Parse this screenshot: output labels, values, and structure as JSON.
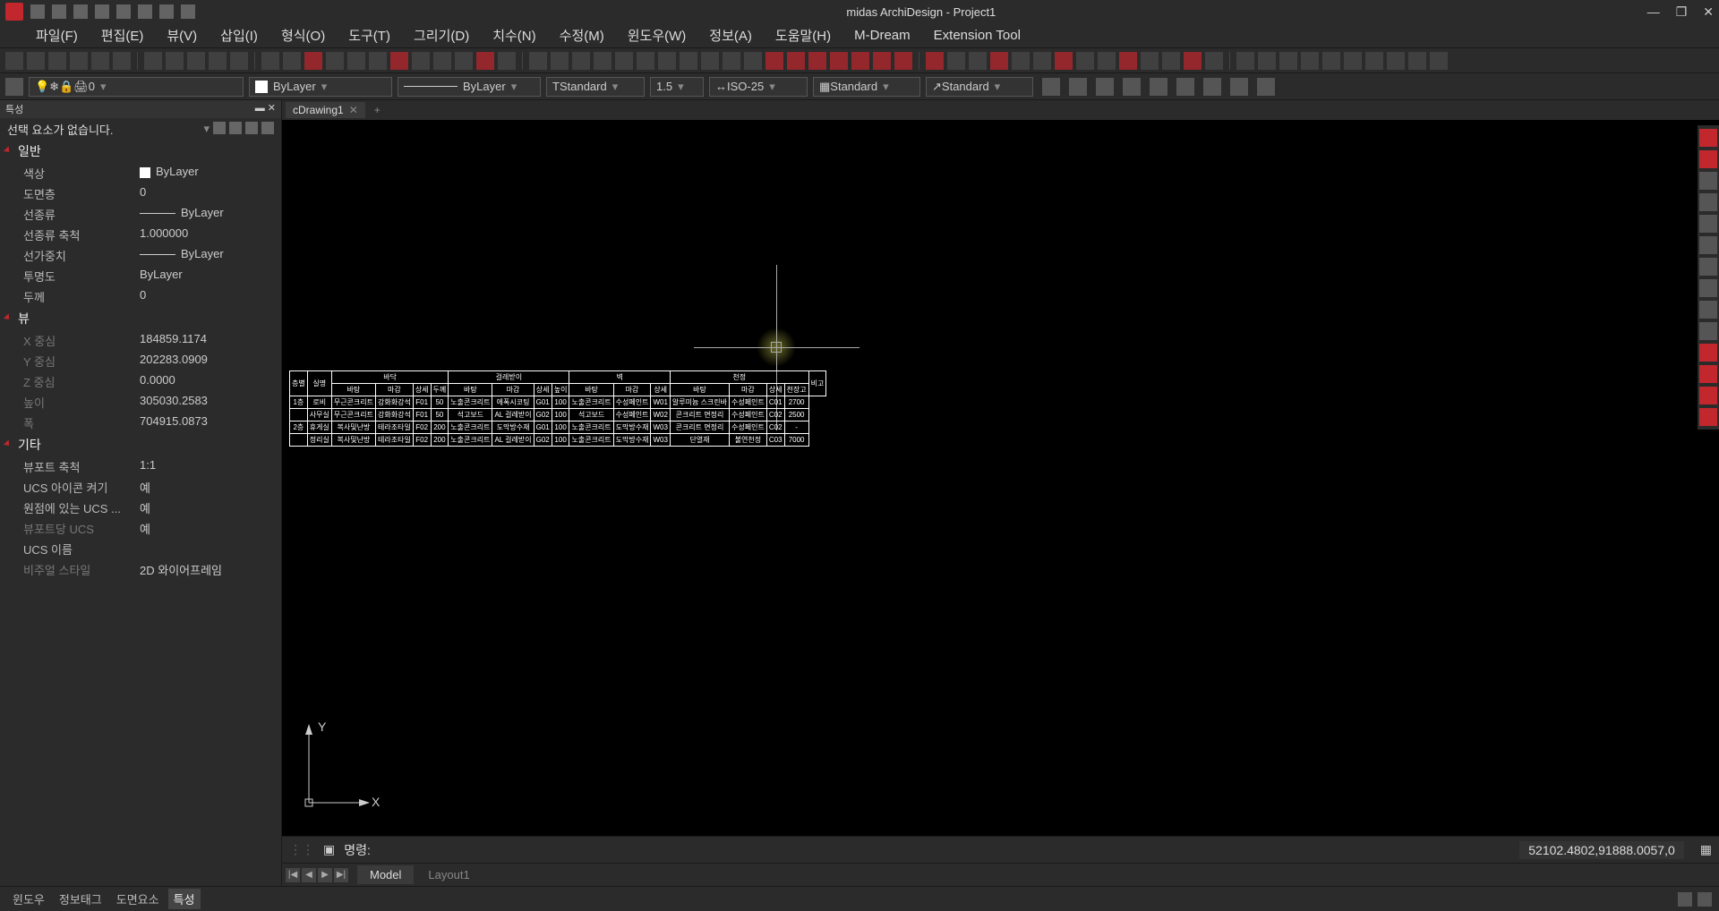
{
  "app": {
    "title": "midas ArchiDesign - Project1"
  },
  "menu": [
    "파일(F)",
    "편집(E)",
    "뷰(V)",
    "삽입(I)",
    "형식(O)",
    "도구(T)",
    "그리기(D)",
    "치수(N)",
    "수정(M)",
    "윈도우(W)",
    "정보(A)",
    "도움말(H)",
    "M-Dream",
    "Extension Tool"
  ],
  "propbar": {
    "layer": "0",
    "color": "ByLayer",
    "ltype": "ByLayer",
    "tstyle": "Standard",
    "tscale": "1.5",
    "dim": "ISO-25",
    "tblstyle": "Standard",
    "mleader": "Standard"
  },
  "doctab": {
    "name": "cDrawing1"
  },
  "panel": {
    "hdr": "특성",
    "sel": "선택 요소가 없습니다.",
    "groups": {
      "g1": "일반",
      "g2": "뷰",
      "g3": "기타"
    },
    "rows": {
      "color_k": "색상",
      "color_v": "ByLayer",
      "layer_k": "도면층",
      "layer_v": "0",
      "ltype_k": "선종류",
      "ltype_v": "ByLayer",
      "ltscale_k": "선종류 축척",
      "ltscale_v": "1.000000",
      "lw_k": "선가중치",
      "lw_v": "ByLayer",
      "trans_k": "투명도",
      "trans_v": "ByLayer",
      "thk_k": "두께",
      "thk_v": "0",
      "xc_k": "X 중심",
      "xc_v": "184859.1174",
      "yc_k": "Y 중심",
      "yc_v": "202283.0909",
      "zc_k": "Z 중심",
      "zc_v": "0.0000",
      "h_k": "높이",
      "h_v": "305030.2583",
      "w_k": "폭",
      "w_v": "704915.0873",
      "vs_k": "뷰포트 축척",
      "vs_v": "1:1",
      "uic_k": "UCS 아이콘 켜기",
      "uic_v": "예",
      "uor_k": "원점에 있는 UCS ...",
      "uor_v": "예",
      "uvp_k": "뷰포트당 UCS",
      "uvp_v": "예",
      "un_k": "UCS 이름",
      "un_v": "",
      "vst_k": "비주얼 스타일",
      "vst_v": "2D 와이어프레임"
    }
  },
  "cadtable": {
    "toprow": [
      "층별",
      "실명",
      "바닥",
      "걸레받이",
      "벽",
      "천정",
      "비고"
    ],
    "sub": [
      "바탕",
      "마감",
      "상세",
      "두께",
      "바탕",
      "마감",
      "상세",
      "높이",
      "바탕",
      "마감",
      "상세",
      "바탕",
      "마감",
      "상세",
      "천장고"
    ],
    "rows": [
      [
        "1층",
        "로비",
        "무근콘크리트",
        "강화화강석",
        "F01",
        "50",
        "노출콘크리트",
        "에폭시코팅",
        "G01",
        "100",
        "노출콘크리트",
        "수성페인트",
        "W01",
        "알루미늄 스크린바",
        "수성페인트",
        "C01",
        "2700"
      ],
      [
        "",
        "사무실",
        "무근콘크리트",
        "강화화강석",
        "F01",
        "50",
        "석고보드",
        "AL 걸레받이",
        "G02",
        "100",
        "석고보드",
        "수성페인트",
        "W02",
        "콘크리트 면정리",
        "수성페인트",
        "C02",
        "2500"
      ],
      [
        "2층",
        "휴게실",
        "복사및난방",
        "테라조타일",
        "F02",
        "200",
        "노출콘크리트",
        "도막방수재",
        "G01",
        "100",
        "노출콘크리트",
        "도막방수재",
        "W03",
        "콘크리트 면정리",
        "수성페인트",
        "C02",
        "-"
      ],
      [
        "",
        "정리실",
        "복사및난방",
        "테라조타일",
        "F02",
        "200",
        "노출콘크리트",
        "AL 걸레받이",
        "G02",
        "100",
        "노출콘크리트",
        "도막방수재",
        "W03",
        "단열재",
        "불연천정",
        "C03",
        "7000"
      ]
    ]
  },
  "cmd": {
    "label": "명령:",
    "coords": "52102.4802,91888.0057,0"
  },
  "modeltabs": {
    "model": "Model",
    "layout": "Layout1"
  },
  "status": {
    "tabs": [
      "윈도우",
      "정보태그",
      "도면요소",
      "특성"
    ]
  }
}
